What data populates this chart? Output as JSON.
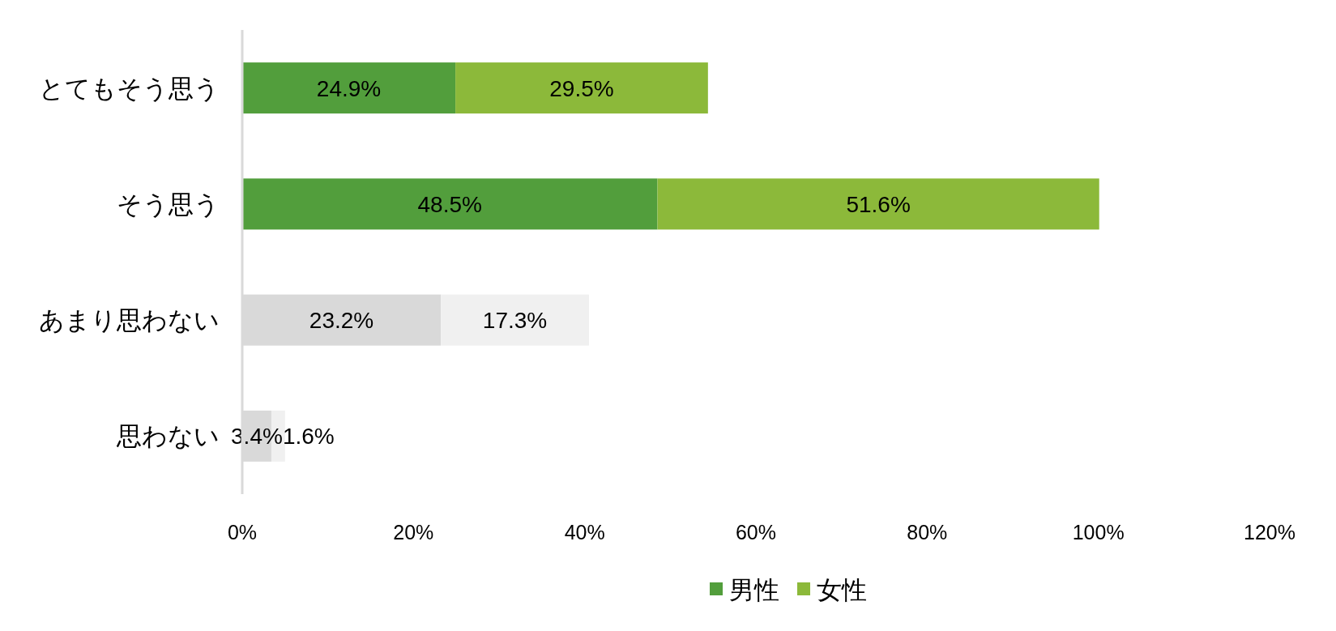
{
  "chart_data": {
    "type": "bar",
    "orientation": "horizontal",
    "stacked": true,
    "data_labels": true,
    "legend": "bottom",
    "grid": false,
    "categories": [
      "とてもそう思う",
      "そう思う",
      "あまり思わない",
      "思わない"
    ],
    "series": [
      {
        "name": "男性",
        "color": "#529e3c",
        "colors": [
          "#529e3c",
          "#529e3c",
          "#d9d9d9",
          "#d9d9d9"
        ],
        "values": [
          24.9,
          48.5,
          23.2,
          3.4
        ],
        "value_labels": [
          "24.9%",
          "48.5%",
          "23.2%",
          "3.4%"
        ]
      },
      {
        "name": "女性",
        "color": "#8cb93a",
        "colors": [
          "#8cb93a",
          "#8cb93a",
          "#f0f0f0",
          "#f0f0f0"
        ],
        "values": [
          29.5,
          51.6,
          17.3,
          1.6
        ],
        "value_labels": [
          "29.5%",
          "51.6%",
          "17.3%",
          "1.6%"
        ]
      }
    ],
    "xlim": [
      0,
      120
    ],
    "xticks": [
      {
        "value": 0,
        "label": "0%"
      },
      {
        "value": 20,
        "label": "20%"
      },
      {
        "value": 40,
        "label": "40%"
      },
      {
        "value": 60,
        "label": "60%"
      },
      {
        "value": 80,
        "label": "80%"
      },
      {
        "value": 100,
        "label": "100%"
      },
      {
        "value": 120,
        "label": "120%"
      }
    ]
  }
}
